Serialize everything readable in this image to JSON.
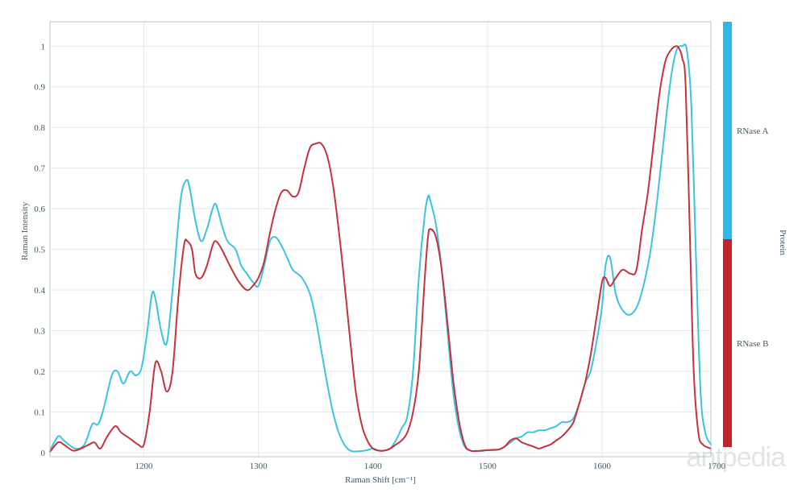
{
  "chart_data": {
    "type": "line",
    "xlabel": "Raman Shift [cm⁻¹]",
    "ylabel": "Raman Intensity",
    "xlim": [
      1118,
      1695
    ],
    "ylim": [
      -0.01,
      1.06
    ],
    "xticks": [
      1200,
      1300,
      1400,
      1500,
      1600,
      1700
    ],
    "yticks": [
      0,
      0.1,
      0.2,
      0.3,
      0.4,
      0.5,
      0.6,
      0.7,
      0.8,
      0.9,
      1
    ],
    "xtick_labels": [
      "1200",
      "1300",
      "1400",
      "1500",
      "1600",
      "1700"
    ],
    "ytick_labels": [
      "0",
      "0.1",
      "0.2",
      "0.3",
      "0.4",
      "0.5",
      "0.6",
      "0.7",
      "0.8",
      "0.9",
      "1"
    ],
    "grid": true,
    "series": [
      {
        "name": "RNase A",
        "color": "#3ec3df",
        "x": [
          1118,
          1125,
          1130,
          1140,
          1148,
          1155,
          1160,
          1165,
          1172,
          1177,
          1182,
          1188,
          1193,
          1198,
          1203,
          1207,
          1210,
          1215,
          1220,
          1225,
          1232,
          1237,
          1240,
          1245,
          1250,
          1255,
          1260,
          1263,
          1268,
          1273,
          1280,
          1285,
          1290,
          1295,
          1300,
          1305,
          1310,
          1315,
          1320,
          1325,
          1330,
          1338,
          1345,
          1350,
          1355,
          1360,
          1365,
          1370,
          1375,
          1380,
          1385,
          1390,
          1395,
          1400,
          1405,
          1410,
          1415,
          1420,
          1425,
          1430,
          1435,
          1440,
          1445,
          1448,
          1450,
          1455,
          1460,
          1465,
          1470,
          1475,
          1480,
          1485,
          1490,
          1495,
          1500,
          1505,
          1510,
          1515,
          1520,
          1525,
          1530,
          1535,
          1540,
          1545,
          1550,
          1555,
          1560,
          1565,
          1570,
          1575,
          1580,
          1585,
          1590,
          1595,
          1600,
          1603,
          1607,
          1612,
          1618,
          1625,
          1632,
          1640,
          1645,
          1650,
          1655,
          1660,
          1665,
          1670,
          1674,
          1678,
          1682,
          1686,
          1690,
          1695
        ],
        "values": [
          0.005,
          0.04,
          0.03,
          0.01,
          0.02,
          0.07,
          0.07,
          0.11,
          0.19,
          0.2,
          0.17,
          0.2,
          0.19,
          0.21,
          0.3,
          0.39,
          0.38,
          0.3,
          0.27,
          0.4,
          0.62,
          0.67,
          0.65,
          0.57,
          0.52,
          0.55,
          0.6,
          0.61,
          0.56,
          0.52,
          0.5,
          0.46,
          0.44,
          0.42,
          0.41,
          0.46,
          0.52,
          0.53,
          0.51,
          0.48,
          0.45,
          0.43,
          0.39,
          0.33,
          0.25,
          0.17,
          0.1,
          0.05,
          0.02,
          0.005,
          0.003,
          0.004,
          0.006,
          0.01,
          0.005,
          0.005,
          0.01,
          0.03,
          0.06,
          0.09,
          0.2,
          0.43,
          0.58,
          0.63,
          0.62,
          0.56,
          0.45,
          0.3,
          0.15,
          0.06,
          0.015,
          0.005,
          0.004,
          0.004,
          0.006,
          0.006,
          0.008,
          0.015,
          0.025,
          0.035,
          0.04,
          0.05,
          0.05,
          0.055,
          0.055,
          0.06,
          0.065,
          0.075,
          0.075,
          0.085,
          0.12,
          0.17,
          0.2,
          0.27,
          0.36,
          0.46,
          0.48,
          0.39,
          0.35,
          0.34,
          0.37,
          0.46,
          0.55,
          0.67,
          0.8,
          0.92,
          0.99,
          1.0,
          0.99,
          0.85,
          0.48,
          0.15,
          0.05,
          0.02
        ]
      },
      {
        "name": "RNase B",
        "color": "#c4323f",
        "x": [
          1118,
          1125,
          1130,
          1138,
          1145,
          1152,
          1157,
          1162,
          1168,
          1175,
          1180,
          1185,
          1190,
          1195,
          1200,
          1205,
          1210,
          1215,
          1220,
          1225,
          1230,
          1235,
          1238,
          1242,
          1245,
          1250,
          1255,
          1260,
          1263,
          1268,
          1275,
          1283,
          1290,
          1295,
          1300,
          1305,
          1310,
          1315,
          1320,
          1325,
          1330,
          1335,
          1340,
          1345,
          1350,
          1355,
          1360,
          1365,
          1370,
          1375,
          1380,
          1385,
          1390,
          1395,
          1400,
          1405,
          1410,
          1415,
          1420,
          1425,
          1430,
          1435,
          1440,
          1445,
          1448,
          1450,
          1455,
          1460,
          1465,
          1470,
          1475,
          1480,
          1485,
          1490,
          1495,
          1500,
          1505,
          1510,
          1515,
          1520,
          1525,
          1530,
          1535,
          1540,
          1545,
          1550,
          1555,
          1560,
          1565,
          1570,
          1575,
          1580,
          1585,
          1590,
          1595,
          1600,
          1603,
          1607,
          1612,
          1618,
          1625,
          1630,
          1635,
          1640,
          1645,
          1650,
          1655,
          1660,
          1665,
          1668,
          1670,
          1673,
          1677,
          1680,
          1684,
          1688,
          1695
        ],
        "values": [
          0.002,
          0.025,
          0.02,
          0.005,
          0.01,
          0.02,
          0.025,
          0.01,
          0.04,
          0.065,
          0.05,
          0.04,
          0.03,
          0.02,
          0.02,
          0.1,
          0.22,
          0.2,
          0.15,
          0.2,
          0.38,
          0.51,
          0.52,
          0.5,
          0.44,
          0.43,
          0.46,
          0.51,
          0.52,
          0.5,
          0.46,
          0.42,
          0.4,
          0.41,
          0.43,
          0.47,
          0.54,
          0.6,
          0.64,
          0.645,
          0.63,
          0.64,
          0.7,
          0.75,
          0.76,
          0.76,
          0.73,
          0.66,
          0.55,
          0.42,
          0.28,
          0.15,
          0.07,
          0.03,
          0.01,
          0.005,
          0.005,
          0.01,
          0.02,
          0.03,
          0.05,
          0.1,
          0.2,
          0.42,
          0.53,
          0.55,
          0.53,
          0.45,
          0.32,
          0.18,
          0.08,
          0.02,
          0.005,
          0.004,
          0.005,
          0.006,
          0.007,
          0.008,
          0.015,
          0.03,
          0.035,
          0.025,
          0.02,
          0.015,
          0.01,
          0.015,
          0.02,
          0.03,
          0.04,
          0.055,
          0.075,
          0.12,
          0.17,
          0.24,
          0.33,
          0.42,
          0.43,
          0.41,
          0.43,
          0.45,
          0.44,
          0.45,
          0.55,
          0.64,
          0.76,
          0.88,
          0.96,
          0.99,
          1.0,
          0.99,
          0.97,
          0.9,
          0.5,
          0.2,
          0.05,
          0.02,
          0.01
        ]
      }
    ],
    "colorbar": {
      "label": "Protein",
      "entries": [
        {
          "name": "RNase A",
          "color": "#2fb9ea"
        },
        {
          "name": "RNase B",
          "color": "#c2242a"
        }
      ]
    }
  },
  "watermark": "antpedia"
}
